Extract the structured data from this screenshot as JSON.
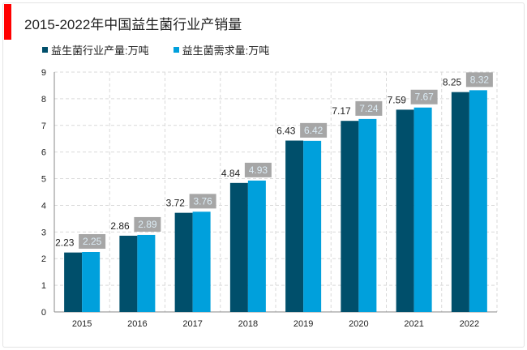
{
  "chart_data": {
    "type": "bar",
    "title": "2015-2022年中国益生菌行业产销量",
    "categories": [
      "2015",
      "2016",
      "2017",
      "2018",
      "2019",
      "2020",
      "2021",
      "2022"
    ],
    "series": [
      {
        "name": "益生菌行业产量:万吨",
        "color": "#004f6b",
        "values": [
          2.23,
          2.86,
          3.72,
          4.84,
          6.43,
          7.17,
          7.59,
          8.25
        ]
      },
      {
        "name": "益生菌需求量:万吨",
        "color": "#00a0dc",
        "values": [
          2.25,
          2.89,
          3.76,
          4.93,
          6.42,
          7.24,
          7.67,
          8.32
        ]
      }
    ],
    "ylim": [
      0,
      9
    ],
    "yticks": [
      0,
      1,
      2,
      3,
      4,
      5,
      6,
      7,
      8,
      9
    ],
    "grid": true,
    "legend_placement": "top-left",
    "xlabel": "",
    "ylabel": ""
  }
}
